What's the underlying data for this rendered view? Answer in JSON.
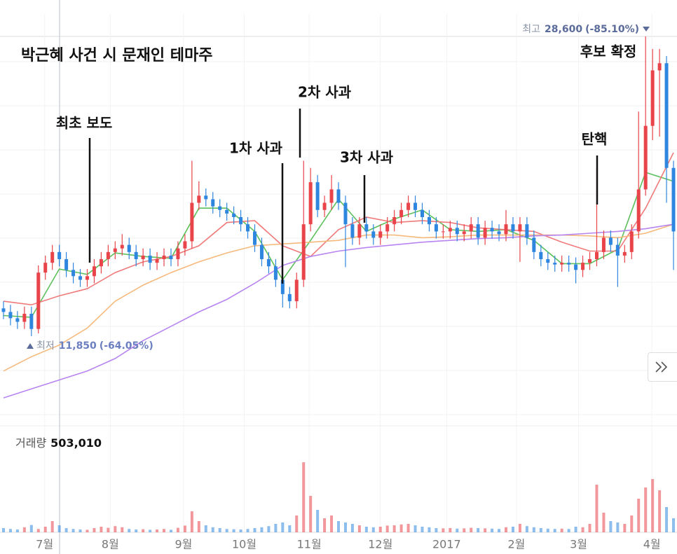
{
  "chart_data": {
    "type": "candlestick",
    "title": "박근혜 사건 시 문재인 테마주",
    "open": [
      13400,
      13200,
      12850,
      12650,
      13100,
      12250,
      15400,
      15950,
      16550,
      16150,
      15550,
      15200,
      15000,
      15200,
      15750,
      16150,
      16550,
      16750,
      16950,
      16550,
      16150,
      16350,
      15950,
      16150,
      16350,
      16150,
      16750,
      17150,
      19300,
      19700,
      19500,
      19100,
      18900,
      18700,
      18500,
      18100,
      17700,
      16950,
      16150,
      15750,
      15000,
      14200,
      13800,
      15000,
      18100,
      20450,
      18900,
      19300,
      20050,
      19300,
      18100,
      17350,
      18100,
      17700,
      17350,
      17700,
      18100,
      18500,
      18900,
      19300,
      18900,
      18500,
      18100,
      17700,
      17700,
      17900,
      17550,
      17700,
      18100,
      17350,
      17900,
      17700,
      17550,
      18100,
      17700,
      18100,
      17350,
      16550,
      16150,
      15950,
      15850,
      15950,
      15850,
      15550,
      15950,
      16150,
      16550,
      17350,
      16950,
      16350,
      16550,
      17700,
      20050,
      23600,
      26700,
      27100,
      21250
    ],
    "high": [
      13800,
      13600,
      13250,
      13500,
      13500,
      15800,
      16350,
      16950,
      16950,
      16550,
      15950,
      15600,
      15600,
      16150,
      16550,
      16950,
      17150,
      17550,
      17350,
      16950,
      16750,
      16750,
      16550,
      16750,
      16750,
      17150,
      17550,
      21650,
      20500,
      20100,
      19900,
      19500,
      19300,
      19100,
      18900,
      18500,
      18100,
      17350,
      16550,
      16150,
      15400,
      14600,
      15400,
      21650,
      21250,
      20850,
      19700,
      20850,
      20450,
      19700,
      18500,
      18500,
      18500,
      18100,
      18100,
      18500,
      18900,
      19300,
      19700,
      19700,
      19300,
      18900,
      18500,
      18100,
      18300,
      18300,
      18100,
      18500,
      18500,
      18300,
      18300,
      18100,
      18900,
      18500,
      18500,
      18500,
      17750,
      16950,
      16550,
      16350,
      16350,
      16350,
      16250,
      16350,
      16550,
      21250,
      17750,
      17750,
      17350,
      16950,
      18100,
      24400,
      28600,
      27900,
      27900,
      27500,
      21650
    ],
    "low": [
      12800,
      12450,
      12250,
      12250,
      11850,
      12000,
      15000,
      15550,
      15750,
      15150,
      14800,
      14600,
      14600,
      14800,
      15350,
      15750,
      16150,
      16350,
      16150,
      15750,
      15750,
      15550,
      15550,
      15750,
      15750,
      15750,
      16350,
      16750,
      18900,
      19100,
      18700,
      18500,
      18300,
      18100,
      17700,
      17300,
      16550,
      15750,
      15350,
      14600,
      13450,
      13400,
      13400,
      14600,
      17700,
      18500,
      18500,
      18900,
      18900,
      15700,
      16950,
      16950,
      17300,
      16950,
      16950,
      17300,
      17700,
      18100,
      18500,
      18500,
      18100,
      17700,
      17300,
      17300,
      17300,
      17150,
      17150,
      17300,
      16950,
      16950,
      17300,
      17150,
      17150,
      17300,
      16000,
      16950,
      16150,
      15750,
      15550,
      15450,
      15450,
      15450,
      14800,
      15150,
      15550,
      15750,
      16150,
      16550,
      14600,
      15950,
      16150,
      17300,
      19700,
      22800,
      23000,
      19300,
      15550
    ],
    "close": [
      13200,
      12850,
      12650,
      13100,
      12250,
      15400,
      15950,
      16550,
      16150,
      15550,
      15200,
      15000,
      15200,
      15750,
      16150,
      16550,
      16750,
      16950,
      16550,
      16150,
      16350,
      15950,
      16150,
      16350,
      16150,
      16750,
      17150,
      19300,
      19700,
      19500,
      19100,
      18900,
      18700,
      18500,
      18100,
      17700,
      16950,
      16150,
      15750,
      15000,
      14200,
      13800,
      15000,
      18100,
      20450,
      18900,
      19300,
      20050,
      19300,
      18100,
      17350,
      18100,
      17700,
      17350,
      17700,
      18100,
      18500,
      18900,
      19300,
      18900,
      18500,
      18100,
      17700,
      17700,
      17900,
      17550,
      17700,
      18100,
      17350,
      17900,
      17700,
      17550,
      18100,
      17700,
      18100,
      17350,
      16550,
      16150,
      15950,
      15850,
      15950,
      15850,
      15550,
      15950,
      16150,
      16550,
      17350,
      16950,
      16350,
      16550,
      17700,
      20050,
      23600,
      26700,
      27100,
      21250,
      17700
    ],
    "volume": [
      150000,
      120000,
      100000,
      180000,
      260000,
      120000,
      200000,
      400000,
      250000,
      150000,
      120000,
      100000,
      90000,
      150000,
      200000,
      160000,
      220000,
      180000,
      120000,
      100000,
      110000,
      90000,
      100000,
      120000,
      90000,
      160000,
      240000,
      750000,
      400000,
      250000,
      180000,
      150000,
      120000,
      110000,
      100000,
      120000,
      150000,
      180000,
      220000,
      300000,
      350000,
      250000,
      600000,
      2500000,
      1300000,
      800000,
      500000,
      600000,
      400000,
      350000,
      300000,
      250000,
      200000,
      180000,
      200000,
      240000,
      250000,
      280000,
      300000,
      250000,
      200000,
      180000,
      150000,
      140000,
      150000,
      130000,
      140000,
      160000,
      150000,
      140000,
      130000,
      120000,
      180000,
      200000,
      300000,
      220000,
      180000,
      150000,
      130000,
      120000,
      130000,
      120000,
      200000,
      180000,
      300000,
      1700000,
      700000,
      400000,
      350000,
      300000,
      600000,
      1200000,
      1600000,
      1900000,
      1500000,
      900000,
      503010
    ],
    "up_color": "#e8444a",
    "down_color": "#2e86de",
    "moving_averages": [
      {
        "color": "#5cc05c",
        "x": [
          0,
          4,
          8,
          12,
          16,
          20,
          24,
          28,
          32,
          36,
          40,
          44,
          48,
          52,
          56,
          60,
          64,
          68,
          72,
          76,
          80,
          84,
          88,
          92,
          96
        ],
        "values": [
          13000,
          12900,
          15600,
          15300,
          16500,
          16300,
          16200,
          19000,
          19000,
          17700,
          15000,
          17200,
          19500,
          17700,
          18400,
          18900,
          17800,
          17700,
          17800,
          17200,
          15900,
          15900,
          16700,
          21000,
          20500
        ]
      },
      {
        "color": "#f07a7a",
        "x": [
          0,
          4,
          8,
          12,
          16,
          20,
          24,
          28,
          32,
          36,
          40,
          44,
          48,
          52,
          56,
          60,
          64,
          68,
          72,
          76,
          80,
          84,
          88,
          92,
          96
        ],
        "values": [
          13800,
          13600,
          14100,
          14500,
          15400,
          16000,
          16300,
          16900,
          18200,
          18300,
          16900,
          16300,
          17800,
          18500,
          18200,
          18300,
          18200,
          17900,
          17800,
          17700,
          17100,
          16600,
          16600,
          19000,
          22100
        ]
      },
      {
        "color": "#f6b97c",
        "x": [
          0,
          4,
          8,
          12,
          16,
          20,
          24,
          28,
          32,
          36,
          40,
          44,
          48,
          52,
          56,
          60,
          64,
          68,
          72,
          76,
          80,
          84,
          88,
          92,
          96
        ],
        "values": [
          9900,
          10700,
          11350,
          12300,
          13800,
          14700,
          15400,
          16000,
          16500,
          16900,
          17000,
          17100,
          17200,
          17500,
          17500,
          17350,
          17400,
          17500,
          17500,
          17500,
          17500,
          17450,
          17350,
          17600,
          18100
        ]
      },
      {
        "color": "#b784f0",
        "x": [
          0,
          4,
          8,
          12,
          16,
          20,
          24,
          28,
          32,
          36,
          40,
          44,
          48,
          52,
          56,
          60,
          64,
          68,
          72,
          76,
          80,
          84,
          88,
          92,
          96
        ],
        "values": [
          8400,
          8900,
          9400,
          9900,
          10600,
          11600,
          12400,
          13200,
          13900,
          14800,
          15800,
          16300,
          16600,
          16800,
          16950,
          17100,
          17200,
          17300,
          17350,
          17450,
          17500,
          17600,
          17700,
          17850,
          18100
        ]
      }
    ],
    "xlim": [
      0,
      97
    ],
    "xticks": [
      {
        "value": 6.4,
        "label": "7월"
      },
      {
        "value": 15.8,
        "label": "8월"
      },
      {
        "value": 26.3,
        "label": "9월"
      },
      {
        "value": 35,
        "label": "10월"
      },
      {
        "value": 44.3,
        "label": "11월"
      },
      {
        "value": 54.5,
        "label": "12월"
      },
      {
        "value": 64,
        "label": "2017"
      },
      {
        "value": 74,
        "label": "2월"
      },
      {
        "value": 82.9,
        "label": "3월"
      },
      {
        "value": 93.4,
        "label": "4월"
      }
    ],
    "ylim": [
      7150,
      29850
    ],
    "volume_lim": [
      0,
      3000000
    ],
    "max_marker": {
      "label": "최고",
      "price": {
        "value": 28600,
        "label": "28,600"
      },
      "change": {
        "value": -85.1,
        "label": "(-85.10%)"
      }
    },
    "min_marker": {
      "label": "최저",
      "price": {
        "value": 11850,
        "label": "11,850"
      },
      "change": {
        "value": -64.05,
        "label": "(-64.05%)"
      }
    },
    "volume_title": "거래량",
    "last_volume": {
      "value": 503010,
      "label": "503,010"
    },
    "annotations": [
      "최초 보도",
      "1차 사과",
      "2차 사과",
      "3차 사과",
      "탄핵",
      "후보 확정"
    ]
  }
}
